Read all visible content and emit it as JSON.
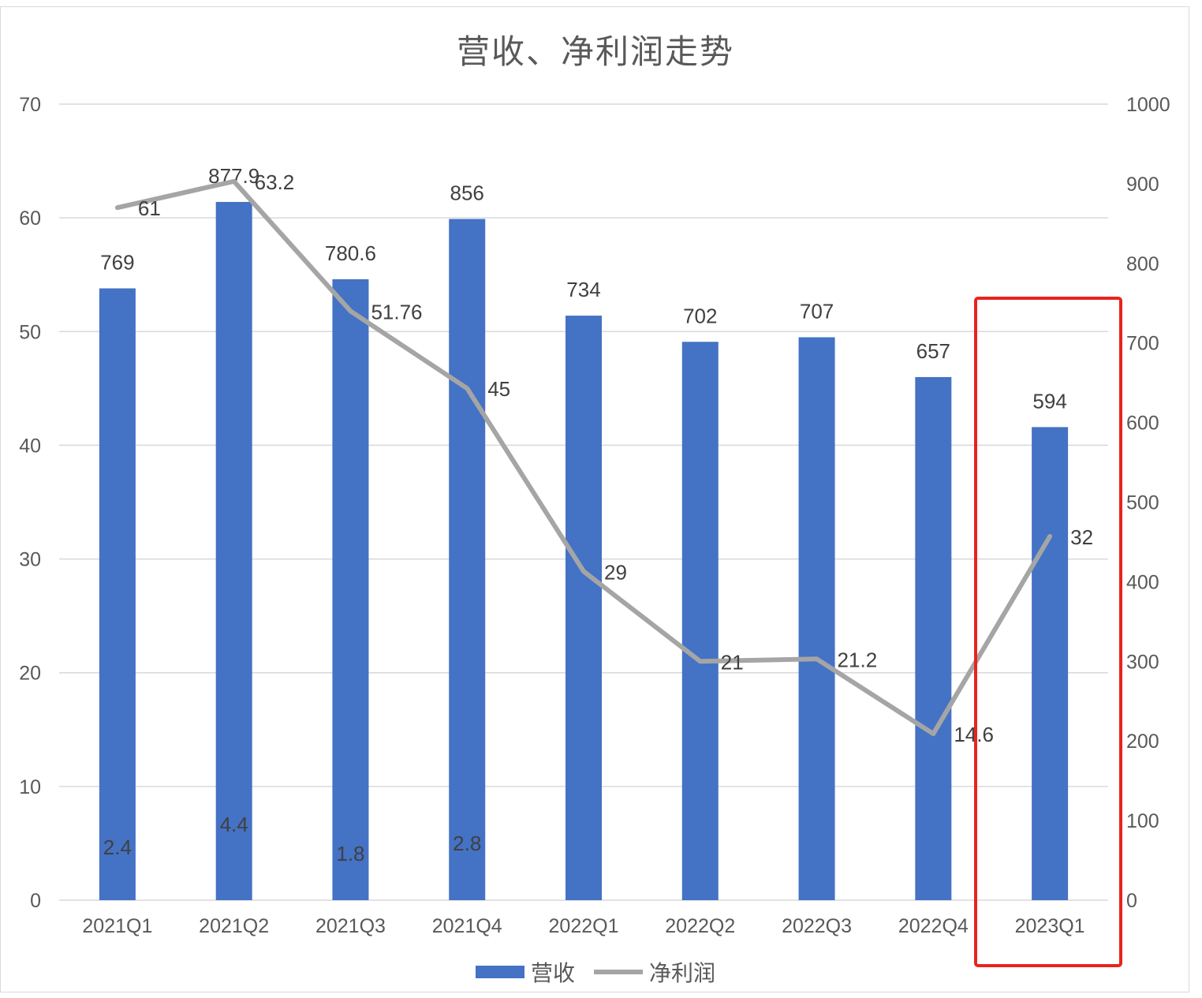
{
  "colors": {
    "bar": "#4472C4",
    "line": "#A5A5A5",
    "grid": "#D9D9D9",
    "highlight": "#E8231F"
  },
  "chart_data": {
    "type": "bar+line",
    "title": "营收、净利润走势",
    "categories": [
      "2021Q1",
      "2021Q2",
      "2021Q3",
      "2021Q4",
      "2022Q1",
      "2022Q2",
      "2022Q3",
      "2022Q4",
      "2023Q1"
    ],
    "series": [
      {
        "name": "营收",
        "type": "bar",
        "axis": "left",
        "values": [
          53.8,
          61.4,
          54.6,
          59.9,
          51.4,
          49.1,
          49.5,
          46.0,
          41.6
        ],
        "labels": [
          "769",
          "877.9",
          "780.6",
          "856",
          "734",
          "702",
          "707",
          "657",
          "594"
        ]
      },
      {
        "name": "净利润",
        "type": "line",
        "axis": "right",
        "values": [
          870,
          903,
          740,
          643,
          413,
          300,
          303,
          209,
          457
        ],
        "labels": [
          "61",
          "63.2",
          "51.76",
          "45",
          "29",
          "21",
          "21.2",
          "14.6",
          "32"
        ]
      }
    ],
    "inside_bar_labels": [
      "2.4",
      "4.4",
      "1.8",
      "2.8"
    ],
    "y_left": {
      "ylim": [
        0,
        70
      ],
      "ticks": [
        "0",
        "10",
        "20",
        "30",
        "40",
        "50",
        "60",
        "70"
      ]
    },
    "y_right": {
      "ylim": [
        0,
        1000
      ],
      "ticks": [
        "0",
        "100",
        "200",
        "300",
        "400",
        "500",
        "600",
        "700",
        "800",
        "900",
        "1000"
      ]
    },
    "grid": true,
    "legend": "bottom",
    "highlight_category": "2023Q1"
  }
}
